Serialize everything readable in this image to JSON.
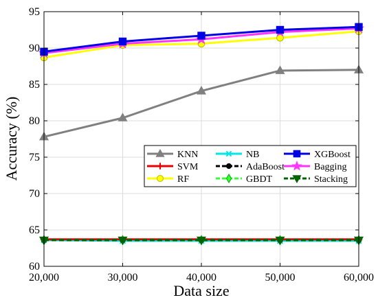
{
  "chart_data": {
    "type": "line",
    "title": "",
    "xlabel": "Data size",
    "ylabel": "Accuracy (%)",
    "x": [
      20000,
      30000,
      40000,
      50000,
      60000
    ],
    "x_tick_labels": [
      "20,000",
      "30,000",
      "40,000",
      "50,000",
      "60,000"
    ],
    "xlim": [
      20000,
      60000
    ],
    "ylim": [
      60,
      95
    ],
    "y_ticks": [
      60,
      65,
      70,
      75,
      80,
      85,
      90,
      95
    ],
    "y_tick_labels": [
      "60",
      "65",
      "70",
      "75",
      "80",
      "85",
      "90",
      "95"
    ],
    "grid": true,
    "legend_position": "center-right",
    "series": [
      {
        "name": "KNN",
        "color": "#808080",
        "marker": "triangle-up",
        "values": [
          77.8,
          80.4,
          84.1,
          86.9,
          87.0
        ]
      },
      {
        "name": "NB",
        "color": "#00e5e5",
        "marker": "x",
        "values": [
          63.6,
          63.5,
          63.5,
          63.5,
          63.5
        ]
      },
      {
        "name": "XGBoost",
        "color": "#0000e6",
        "marker": "square",
        "values": [
          89.5,
          90.9,
          91.7,
          92.5,
          92.9
        ]
      },
      {
        "name": "SVM",
        "color": "#e60000",
        "marker": "plus",
        "values": [
          63.7,
          63.7,
          63.7,
          63.7,
          63.7
        ]
      },
      {
        "name": "AdaBoost",
        "color": "#000000",
        "marker": "circle",
        "values": [
          63.6,
          63.6,
          63.6,
          63.6,
          63.6
        ]
      },
      {
        "name": "Bagging",
        "color": "#ff33ff",
        "marker": "star",
        "values": [
          89.3,
          90.6,
          91.2,
          92.2,
          92.7
        ]
      },
      {
        "name": "RF",
        "color": "#ffff00",
        "marker": "circle-open",
        "values": [
          88.7,
          90.4,
          90.6,
          91.4,
          92.3
        ]
      },
      {
        "name": "GBDT",
        "color": "#33ff33",
        "marker": "diamond",
        "values": [
          63.6,
          63.6,
          63.6,
          63.6,
          63.6
        ]
      },
      {
        "name": "Stacking",
        "color": "#006400",
        "marker": "triangle-down",
        "values": [
          63.6,
          63.6,
          63.6,
          63.6,
          63.6
        ]
      }
    ]
  }
}
